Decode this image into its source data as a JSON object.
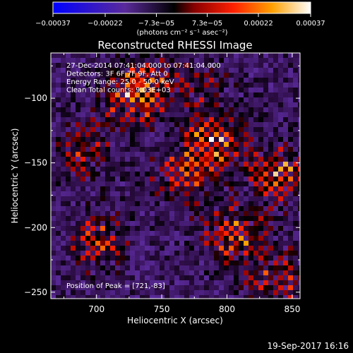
{
  "chart_data": {
    "type": "heatmap",
    "title": "Reconstructed RHESSI Image",
    "xlabel": "Heliocentric X (arcsec)",
    "ylabel": "Heliocentric Y (arcsec)",
    "xlim": [
      665,
      856
    ],
    "ylim": [
      -255,
      -65
    ],
    "x_ticks": [
      700,
      750,
      800,
      850
    ],
    "y_ticks": [
      -100,
      -150,
      -200,
      -250
    ],
    "x_tick_labels": [
      "700",
      "750",
      "800",
      "850"
    ],
    "y_tick_labels": [
      "−100",
      "−150",
      "−200",
      "−250"
    ],
    "info_lines": [
      "27-Dec-2014 07:41:04.000 to 07:41:04.000",
      "Detectors: 3F 6F 7F 9F, Att 0",
      "Energy Range: 25.0 - 50.0 keV",
      "Clean      Total counts: 9.03E+03"
    ],
    "peak_label": "Position of Peak = [721,-83]",
    "colorbar": {
      "min": -0.00037,
      "max": 0.00037,
      "tick_values": [
        -0.00037,
        -0.00022,
        -7.3e-05,
        7.3e-05,
        0.00022,
        0.00037
      ],
      "tick_labels": [
        "−0.00037",
        "−0.00022",
        "−7.3e−05",
        "7.3e−05",
        "0.00022",
        "0.00037"
      ],
      "units_label": "(photons cm⁻² s⁻¹ asec⁻²)",
      "colors": [
        "#0000ff",
        "#7030a0",
        "#000000",
        "#c00000",
        "#ff4000",
        "#ffc000",
        "#ffffff"
      ]
    },
    "bright_regions": [
      {
        "x": 725,
        "y": -100,
        "intensity": 0.8
      },
      {
        "x": 790,
        "y": -135,
        "intensity": 1.0
      },
      {
        "x": 765,
        "y": -160,
        "intensity": 0.7
      },
      {
        "x": 840,
        "y": -160,
        "intensity": 0.9
      },
      {
        "x": 805,
        "y": -205,
        "intensity": 0.9
      },
      {
        "x": 700,
        "y": -210,
        "intensity": 0.75
      },
      {
        "x": 840,
        "y": -240,
        "intensity": 0.7
      },
      {
        "x": 690,
        "y": -140,
        "intensity": 0.6
      },
      {
        "x": 740,
        "y": -90,
        "intensity": 0.55
      },
      {
        "x": 780,
        "y": -90,
        "intensity": 0.45
      }
    ],
    "grid": false,
    "legend": "colorbar-top"
  },
  "footer": {
    "timestamp": "19-Sep-2017 16:16"
  }
}
